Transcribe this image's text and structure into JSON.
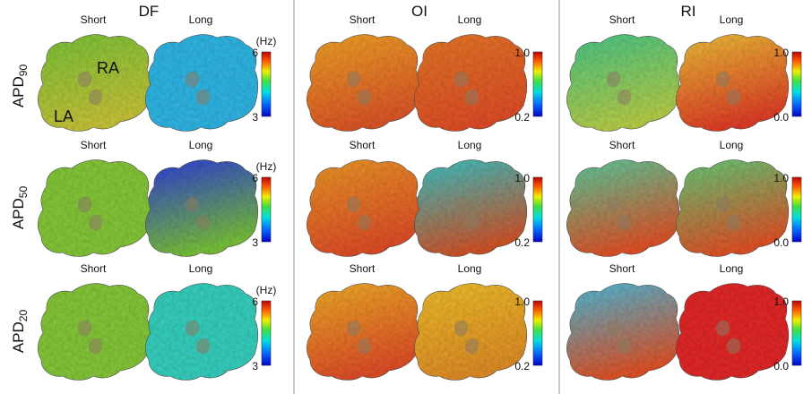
{
  "panels": [
    {
      "title": "DF",
      "unit": "(Hz)",
      "cb_max": "6",
      "cb_min": "3"
    },
    {
      "title": "OI",
      "unit": "",
      "cb_max": "1.0",
      "cb_min": "0.2"
    },
    {
      "title": "RI",
      "unit": "",
      "cb_max": "1.0",
      "cb_min": "0.0"
    }
  ],
  "columns": [
    "Short",
    "Long"
  ],
  "rows": [
    {
      "base": "APD",
      "sub": "90"
    },
    {
      "base": "APD",
      "sub": "50"
    },
    {
      "base": "APD",
      "sub": "20"
    }
  ],
  "anatomy": {
    "ra": "RA",
    "la": "LA"
  },
  "colors": {
    "jet": [
      "#00008f",
      "#0000ff",
      "#00ffff",
      "#ffff00",
      "#ff0000",
      "#800000"
    ],
    "maps": [
      [
        [
          "#7cc63a",
          "#c9c63a"
        ],
        [
          "#33b8e6",
          "#33b8e6"
        ],
        [
          "#f2a62c",
          "#e0582a"
        ],
        [
          "#e87a2a",
          "#e2502a"
        ],
        [
          "#48c989",
          "#b9d14a"
        ],
        [
          "#f0c43a",
          "#e2402a"
        ]
      ],
      [
        [
          "#86c93a",
          "#86c93a"
        ],
        [
          "#2f3fe0",
          "#7ac43a"
        ],
        [
          "#ee9a2c",
          "#e2502a"
        ],
        [
          "#3ac7c9",
          "#d2572c"
        ],
        [
          "#5ad0a0",
          "#e2552a"
        ],
        [
          "#64cf7a",
          "#e2552a"
        ]
      ],
      [
        [
          "#86c93a",
          "#86c93a"
        ],
        [
          "#39d2c0",
          "#39d2c0"
        ],
        [
          "#f2b02c",
          "#e2502a"
        ],
        [
          "#f2c22e",
          "#e28f2a"
        ],
        [
          "#4cbfe0",
          "#e2552a"
        ],
        [
          "#e42a2a",
          "#e42a2a"
        ]
      ]
    ]
  }
}
